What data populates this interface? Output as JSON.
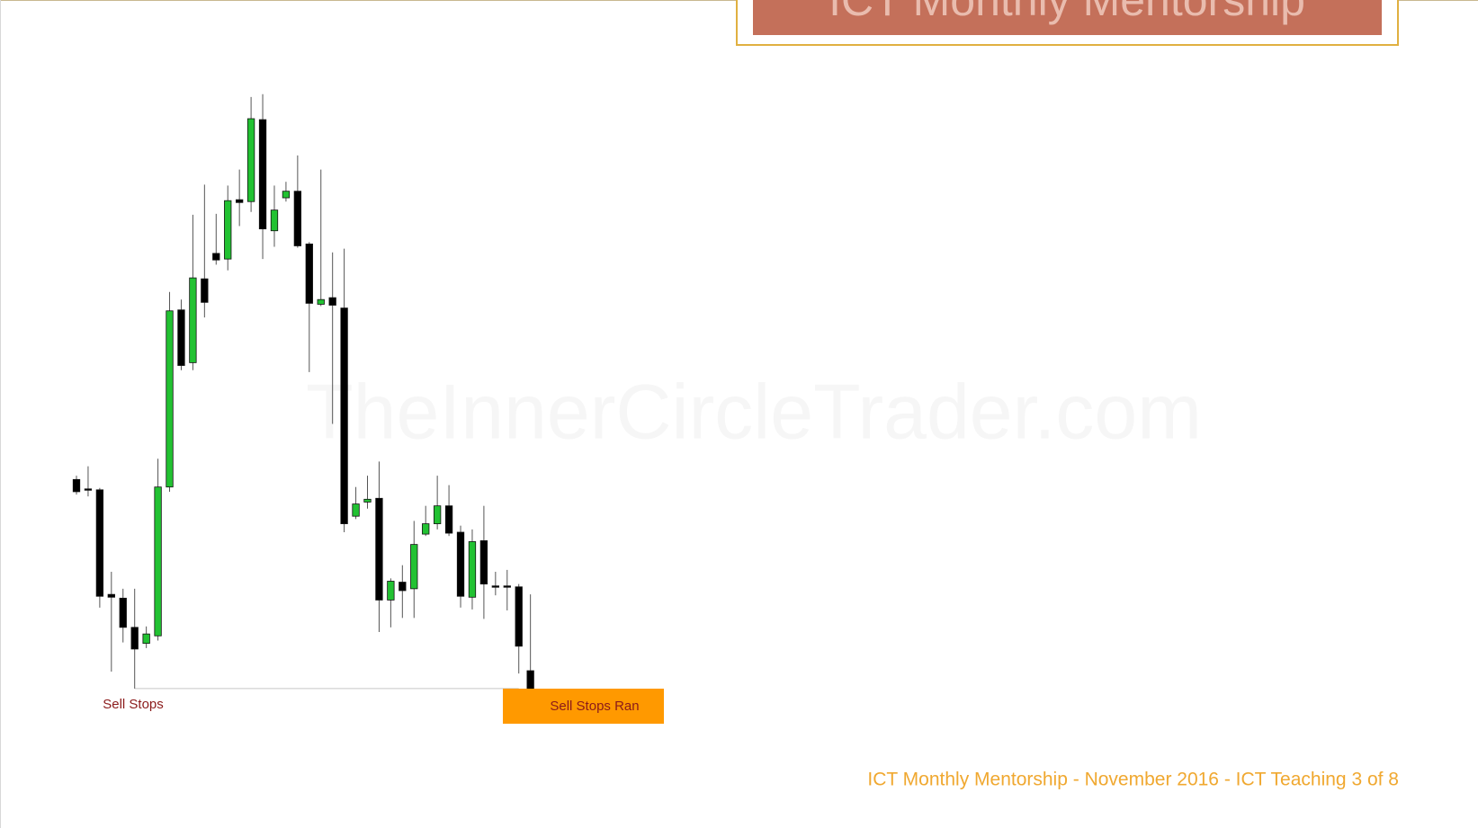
{
  "chart_data": {
    "type": "candlestick",
    "banner_title": "ICT Monthly Mentorship",
    "watermark": "TheInnerCircleTrader.com",
    "footer": "ICT Monthly Mentorship - November 2016 - ICT Teaching 3 of 8",
    "annotations": [
      {
        "text": "Sell Stops",
        "value": 169
      },
      {
        "text": "Sell Stops Ran",
        "color": "#ff9900"
      }
    ],
    "ylim": [
      21,
      900
    ],
    "up_color": "#22c232",
    "down_color": "#000000",
    "open": [
      391,
      381,
      380,
      269,
      265,
      234,
      217,
      225,
      383,
      571,
      515,
      604,
      631,
      625,
      688,
      686,
      773,
      655,
      690,
      697,
      641,
      577,
      584,
      573,
      352,
      367,
      371,
      263,
      282,
      275,
      333,
      344,
      363,
      335,
      266,
      326,
      278,
      278,
      277,
      188
    ],
    "high": [
      395,
      405,
      382,
      293,
      275,
      275,
      235,
      413,
      590,
      582,
      672,
      704,
      673,
      703,
      720,
      797,
      800,
      703,
      707,
      735,
      643,
      720,
      632,
      636,
      383,
      395,
      410,
      286,
      300,
      347,
      363,
      395,
      385,
      342,
      338,
      363,
      293,
      295,
      280,
      269
    ],
    "low": [
      375,
      373,
      255,
      187,
      218,
      169,
      212,
      220,
      378,
      507,
      507,
      563,
      619,
      613,
      660,
      675,
      625,
      638,
      686,
      637,
      505,
      575,
      450,
      335,
      349,
      360,
      229,
      234,
      244,
      244,
      331,
      338,
      331,
      255,
      253,
      243,
      268,
      252,
      185,
      140
    ],
    "close": [
      378,
      380,
      267,
      266,
      234,
      211,
      227,
      383,
      570,
      512,
      605,
      579,
      624,
      687,
      685,
      774,
      657,
      677,
      697,
      639,
      578,
      582,
      576,
      344,
      365,
      370,
      263,
      283,
      273,
      322,
      344,
      363,
      334,
      267,
      325,
      280,
      277,
      277,
      214,
      159
    ]
  }
}
